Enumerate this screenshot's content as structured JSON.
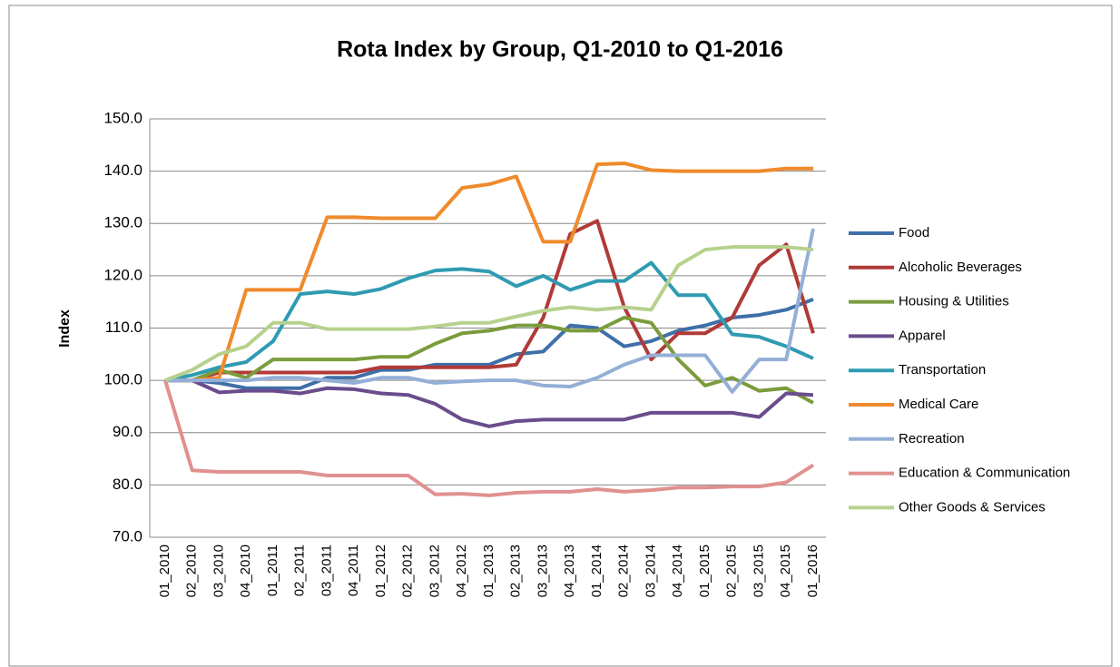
{
  "chart_data": {
    "type": "line",
    "title": "Rota Index by Group, Q1-2010 to Q1-2016",
    "y_label": "Index",
    "categories": [
      "01_2010",
      "02_2010",
      "03_2010",
      "04_2010",
      "01_2011",
      "02_2011",
      "03_2011",
      "04_2011",
      "01_2012",
      "02_2012",
      "03_2012",
      "04_2012",
      "01_2013",
      "02_2013",
      "03_2013",
      "04_2013",
      "01_2014",
      "02_2014",
      "03_2014",
      "04_2014",
      "01_2015",
      "02_2015",
      "03_2015",
      "04_2015",
      "01_2016"
    ],
    "ylim": [
      70,
      150
    ],
    "yticks": [
      {
        "value": 70,
        "label": "70.0"
      },
      {
        "value": 80,
        "label": "80.0"
      },
      {
        "value": 90,
        "label": "90.0"
      },
      {
        "value": 100,
        "label": "100.0"
      },
      {
        "value": 110,
        "label": "110.0"
      },
      {
        "value": 120,
        "label": "120.0"
      },
      {
        "value": 130,
        "label": "130.0"
      },
      {
        "value": 140,
        "label": "140.0"
      },
      {
        "value": 150,
        "label": "150.0"
      }
    ],
    "grid": true,
    "legend": "right",
    "series": [
      {
        "name": "Food",
        "color": "#3f6fa8",
        "values": [
          100,
          100,
          99.5,
          98.5,
          98.5,
          98.5,
          100.5,
          100.5,
          102,
          102,
          103,
          103,
          103,
          105,
          105.5,
          110.5,
          110,
          106.5,
          107.5,
          109.5,
          110.5,
          112,
          112.5,
          113.5,
          115.5
        ]
      },
      {
        "name": "Alcoholic Beverages",
        "color": "#b03a38",
        "values": [
          100,
          100,
          101.5,
          101.5,
          101.5,
          101.5,
          101.5,
          101.5,
          102.5,
          102.5,
          102.5,
          102.5,
          102.5,
          103,
          112,
          128,
          130.5,
          114,
          104,
          109,
          109,
          112,
          122,
          126,
          109
        ]
      },
      {
        "name": "Housing & Utilities",
        "color": "#7b9c3d",
        "values": [
          100,
          100,
          102,
          100.5,
          104,
          104,
          104,
          104,
          104.5,
          104.5,
          107,
          109,
          109.5,
          110.5,
          110.5,
          109.5,
          109.5,
          112,
          111,
          104,
          99,
          100.5,
          98,
          98.5,
          95.7
        ]
      },
      {
        "name": "Apparel",
        "color": "#6a4c8c",
        "values": [
          100,
          100,
          97.7,
          98,
          98,
          97.5,
          98.5,
          98.3,
          97.5,
          97.2,
          95.5,
          92.5,
          91.2,
          92.2,
          92.5,
          92.5,
          92.5,
          92.5,
          93.8,
          93.8,
          93.8,
          93.8,
          93,
          97.5,
          97.2
        ]
      },
      {
        "name": "Transportation",
        "color": "#2f9bb2",
        "values": [
          100,
          101,
          102.5,
          103.5,
          107.5,
          116.5,
          117,
          116.5,
          117.5,
          119.5,
          121,
          121.3,
          120.8,
          118,
          120,
          117.3,
          119,
          119,
          122.5,
          116.3,
          116.3,
          108.8,
          108.3,
          106.5,
          104.2
        ]
      },
      {
        "name": "Medical Care",
        "color": "#f08a2c",
        "values": [
          100,
          100,
          100.5,
          117.3,
          117.3,
          117.3,
          131.2,
          131.2,
          131,
          131,
          131,
          136.8,
          137.5,
          139,
          126.5,
          126.5,
          141.3,
          141.5,
          140.2,
          140,
          140,
          140,
          140,
          140.5,
          140.5
        ]
      },
      {
        "name": "Recreation",
        "color": "#94afd7",
        "values": [
          100,
          100,
          100,
          100,
          100.5,
          100.5,
          100,
          99.5,
          100.5,
          100.5,
          99.5,
          99.8,
          100,
          100,
          99,
          98.8,
          100.5,
          103,
          104.8,
          104.8,
          104.8,
          97.8,
          104,
          104,
          129
        ]
      },
      {
        "name": "Education & Communication",
        "color": "#e0918f",
        "values": [
          100,
          82.8,
          82.5,
          82.5,
          82.5,
          82.5,
          81.8,
          81.8,
          81.8,
          81.8,
          78.2,
          78.3,
          78,
          78.5,
          78.7,
          78.7,
          79.2,
          78.7,
          79,
          79.5,
          79.5,
          79.7,
          79.7,
          80.5,
          83.8
        ]
      },
      {
        "name": "Other Goods & Services",
        "color": "#b6d18d",
        "values": [
          100,
          102,
          105,
          106.5,
          111,
          111,
          109.8,
          109.8,
          109.8,
          109.8,
          110.3,
          111,
          111,
          112.2,
          113.3,
          114,
          113.5,
          114,
          113.5,
          122,
          125,
          125.5,
          125.5,
          125.5,
          125
        ]
      }
    ]
  }
}
